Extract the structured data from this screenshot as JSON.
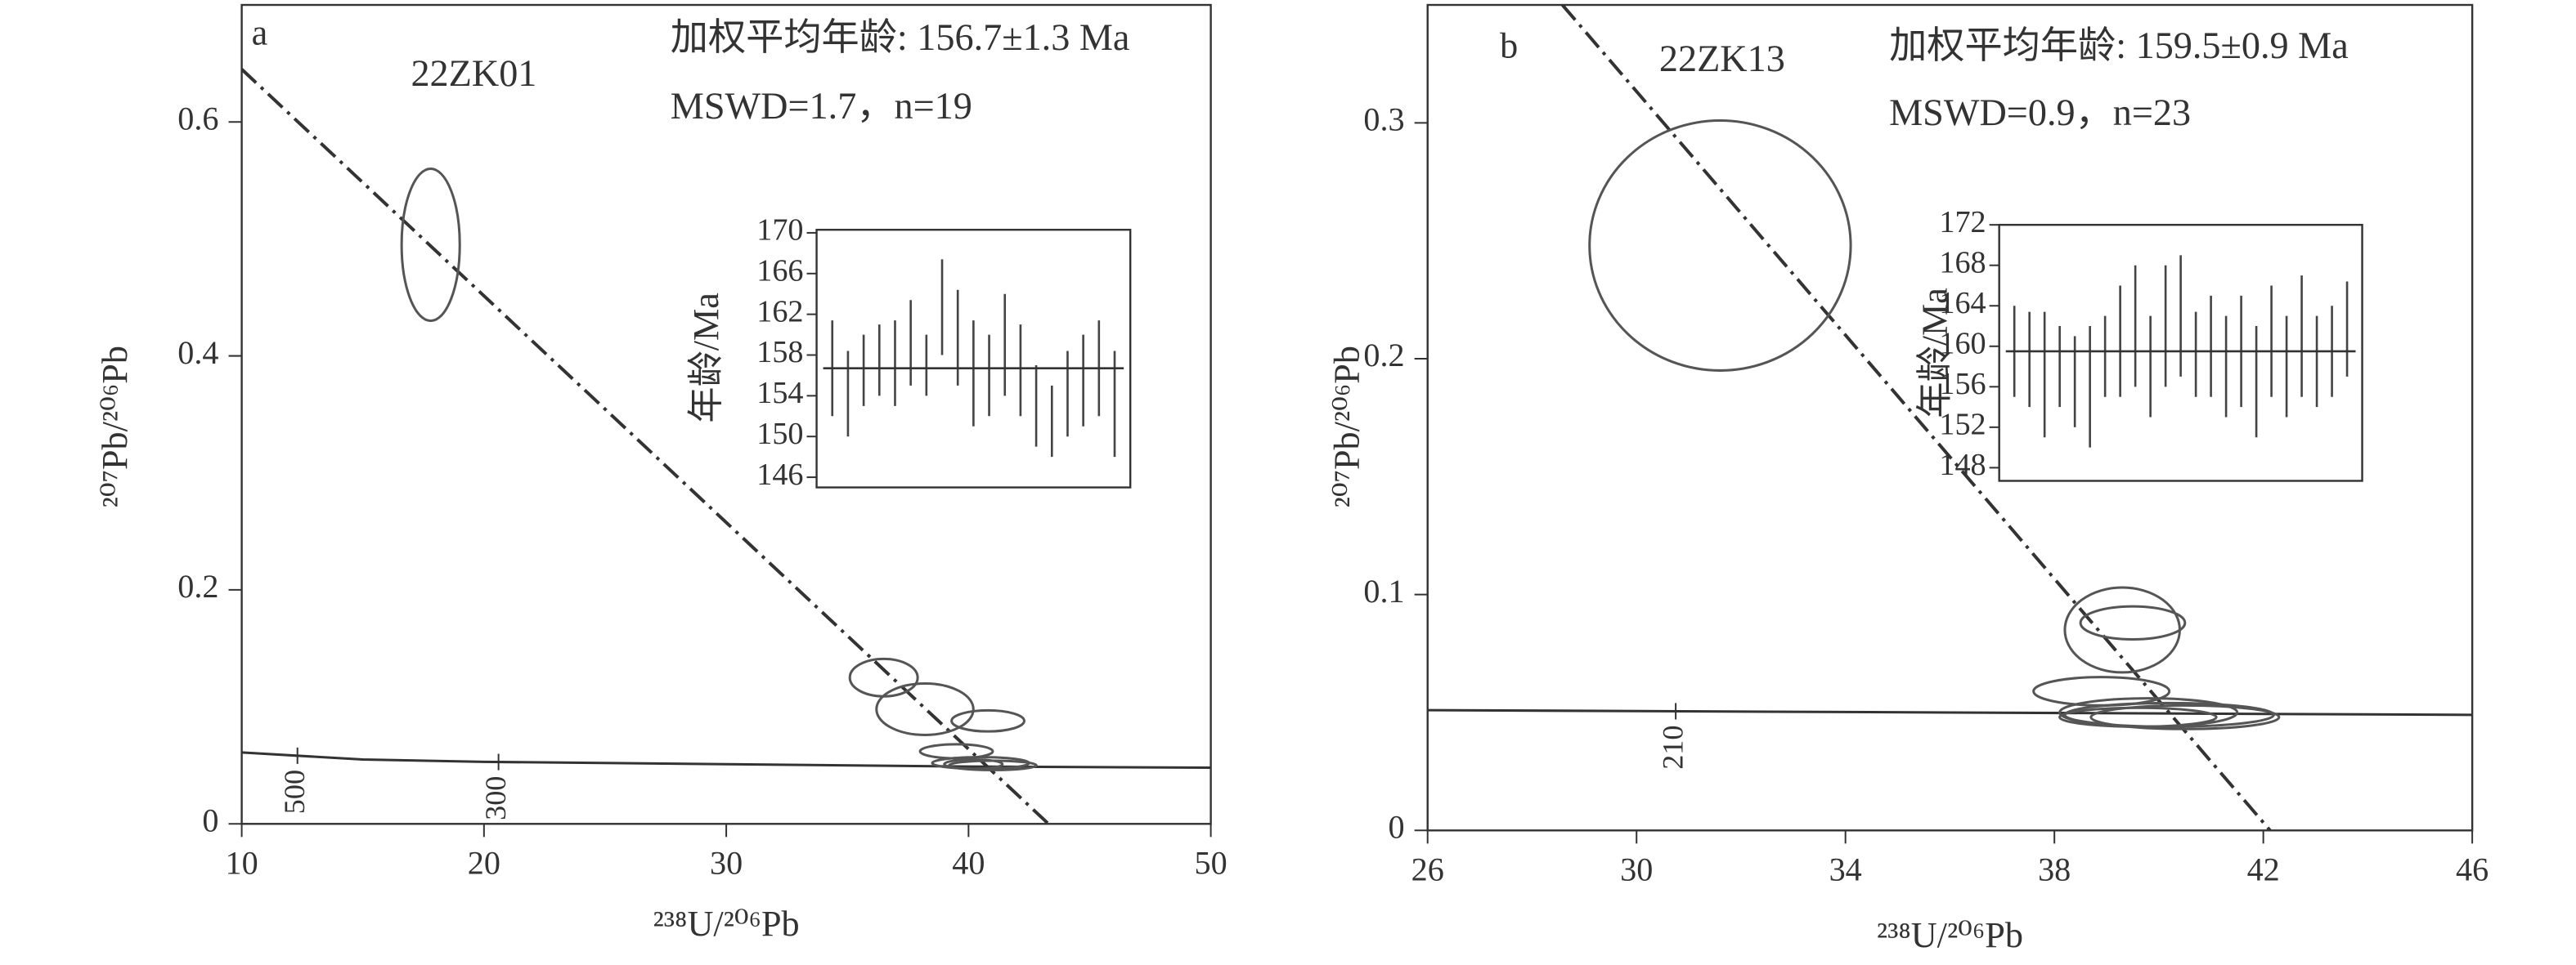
{
  "chart_data": [
    {
      "type": "concordia",
      "panel_label": "a",
      "sample": "22ZK01",
      "age_text": "加权平均年龄: 156.7±1.3 Ma",
      "mswd_text": "MSWD=1.7，n=19",
      "x_label": "²³⁸U/²⁰⁶Pb",
      "y_label": "²⁰⁷Pb/²⁰⁶Pb",
      "xlim": [
        10,
        50
      ],
      "xticks": [
        10,
        20,
        30,
        40,
        50
      ],
      "ylim": [
        0,
        0.7
      ],
      "yticks": [
        0,
        0.2,
        0.4,
        0.6
      ],
      "ellipses": {
        "x": [
          17.8,
          36.5,
          38.2,
          40.8,
          39.5,
          40.5,
          41.0,
          40.2
        ],
        "y": [
          0.495,
          0.125,
          0.098,
          0.088,
          0.062,
          0.052,
          0.05,
          0.051
        ],
        "x_err": [
          1.2,
          1.4,
          2.0,
          1.5,
          1.5,
          2.0,
          1.8,
          1.2
        ],
        "y_err": [
          0.065,
          0.016,
          0.022,
          0.009,
          0.006,
          0.005,
          0.004,
          0.004
        ]
      },
      "concordia": {
        "x": [
          10,
          15,
          20,
          30,
          40,
          50
        ],
        "y": [
          0.061,
          0.055,
          0.053,
          0.051,
          0.049,
          0.048
        ]
      },
      "concordia_ages": [
        {
          "x": 12.3,
          "label": "500"
        },
        {
          "x": 20.6,
          "label": "300"
        }
      ],
      "discordia": {
        "x": [
          10,
          43.3
        ],
        "y": [
          0.645,
          0
        ]
      },
      "inset": {
        "type": "errorbar",
        "y_label": "年龄/Ma",
        "ylim": [
          145,
          170.3
        ],
        "yticks": [
          146,
          150,
          154,
          158,
          162,
          166,
          170
        ],
        "mean": 156.7,
        "values": [
          156.7,
          154.2,
          156.5,
          157.5,
          157.2,
          159.2,
          157,
          162.7,
          159.7,
          156.2,
          156,
          159,
          156.5,
          153,
          151.5,
          154.2,
          155.5,
          156.7,
          153.2
        ],
        "errors": [
          4.7,
          4.2,
          3.5,
          3.5,
          4.2,
          4.2,
          3,
          4.7,
          4.7,
          5.2,
          4,
          5,
          4.5,
          4,
          3.5,
          4.2,
          4.5,
          4.7,
          5.2
        ]
      }
    },
    {
      "type": "concordia",
      "panel_label": "b",
      "sample": "22ZK13",
      "age_text": "加权平均年龄: 159.5±0.9 Ma",
      "mswd_text": "MSWD=0.9，n=23",
      "x_label": "²³⁸U/²⁰⁶Pb",
      "y_label": "²⁰⁷Pb/²⁰⁶Pb",
      "xlim": [
        26,
        46
      ],
      "xticks": [
        26,
        30,
        34,
        38,
        42,
        46
      ],
      "ylim": [
        0,
        0.35
      ],
      "yticks": [
        0,
        0.1,
        0.2,
        0.3
      ],
      "ellipses": {
        "x": [
          31.6,
          39.3,
          39.5,
          38.9,
          39.8,
          40.2,
          39.6,
          40.5
        ],
        "y": [
          0.248,
          0.085,
          0.088,
          0.059,
          0.05,
          0.049,
          0.048,
          0.048
        ],
        "x_err": [
          2.5,
          1.1,
          1.0,
          1.3,
          1.7,
          2.0,
          1.5,
          1.8
        ],
        "y_err": [
          0.053,
          0.018,
          0.007,
          0.006,
          0.006,
          0.005,
          0.004,
          0.005
        ]
      },
      "concordia": {
        "x": [
          26,
          36,
          46
        ],
        "y": [
          0.051,
          0.05,
          0.049
        ]
      },
      "concordia_ages": [
        {
          "x": 30.75,
          "label": "210"
        }
      ],
      "discordia": {
        "x": [
          28.58,
          42.13
        ],
        "y": [
          0.35,
          0
        ]
      },
      "inset": {
        "type": "errorbar",
        "y_label": "年龄/Ma",
        "ylim": [
          146.7,
          172
        ],
        "yticks": [
          148,
          152,
          156,
          160,
          164,
          168,
          172
        ],
        "mean": 159.5,
        "values": [
          159.5,
          158.7,
          157.2,
          158,
          156.5,
          156,
          159,
          160.5,
          162,
          158,
          162,
          163,
          159.2,
          160,
          158,
          159.5,
          156.5,
          160.5,
          158,
          161,
          158.5,
          159.5,
          161.7
        ],
        "errors": [
          4.5,
          4.7,
          6.2,
          4,
          4.5,
          6,
          4,
          5.5,
          6,
          5,
          6,
          6,
          4.2,
          5,
          5,
          5.5,
          5.5,
          5.5,
          5,
          6,
          4.5,
          4.5,
          4.7
        ]
      }
    }
  ]
}
